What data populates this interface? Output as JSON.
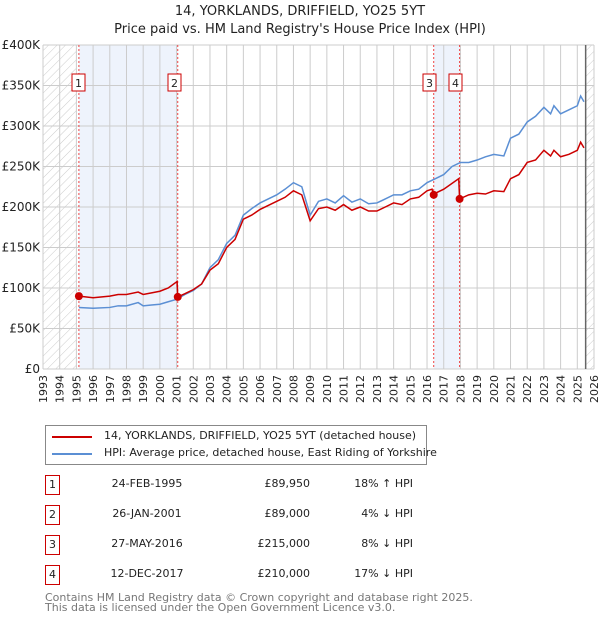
{
  "title": "14, YORKLANDS, DRIFFIELD, YO25 5YT",
  "subtitle": "Price paid vs. HM Land Registry's House Price Index (HPI)",
  "chart_data": {
    "type": "line",
    "title": "14, YORKLANDS, DRIFFIELD, YO25 5YT — Price paid vs. HM Land Registry's House Price Index (HPI)",
    "xlim": [
      1993,
      2026
    ],
    "ylim": [
      0,
      400000
    ],
    "yticks": [
      {
        "v": 0,
        "label": "£0"
      },
      {
        "v": 50000,
        "label": "£50K"
      },
      {
        "v": 100000,
        "label": "£100K"
      },
      {
        "v": 150000,
        "label": "£150K"
      },
      {
        "v": 200000,
        "label": "£200K"
      },
      {
        "v": 250000,
        "label": "£250K"
      },
      {
        "v": 300000,
        "label": "£300K"
      },
      {
        "v": 350000,
        "label": "£350K"
      },
      {
        "v": 400000,
        "label": "£400K"
      }
    ],
    "xticks": [
      "1993",
      "1994",
      "1995",
      "1996",
      "1997",
      "1998",
      "1999",
      "2000",
      "2001",
      "2002",
      "2003",
      "2004",
      "2005",
      "2006",
      "2007",
      "2008",
      "2009",
      "2010",
      "2011",
      "2012",
      "2013",
      "2014",
      "2015",
      "2016",
      "2017",
      "2018",
      "2019",
      "2020",
      "2021",
      "2022",
      "2023",
      "2024",
      "2025",
      "2026"
    ],
    "grid": true,
    "hatched_before": 1995.0,
    "hatched_after": 2025.5,
    "shaded_ranges": [
      [
        1995.15,
        2001.07
      ],
      [
        2016.4,
        2017.95
      ]
    ],
    "series": [
      {
        "name": "14, YORKLANDS, DRIFFIELD, YO25 5YT (detached house)",
        "color": "#cc0000",
        "points": [
          [
            1995.15,
            90
          ],
          [
            1996,
            88
          ],
          [
            1997,
            90
          ],
          [
            1997.5,
            92
          ],
          [
            1998,
            92
          ],
          [
            1998.7,
            95
          ],
          [
            1999,
            92
          ],
          [
            1999.5,
            94
          ],
          [
            2000,
            96
          ],
          [
            2000.5,
            100
          ],
          [
            2001.03,
            108
          ],
          [
            2001.07,
            89
          ],
          [
            2001.5,
            93
          ],
          [
            2002,
            98
          ],
          [
            2002.5,
            105
          ],
          [
            2003,
            122
          ],
          [
            2003.5,
            130
          ],
          [
            2004,
            150
          ],
          [
            2004.5,
            160
          ],
          [
            2005,
            185
          ],
          [
            2005.5,
            190
          ],
          [
            2006,
            197
          ],
          [
            2007,
            207
          ],
          [
            2007.5,
            212
          ],
          [
            2008,
            220
          ],
          [
            2008.5,
            215
          ],
          [
            2009,
            183
          ],
          [
            2009.5,
            198
          ],
          [
            2010,
            200
          ],
          [
            2010.5,
            196
          ],
          [
            2011,
            203
          ],
          [
            2011.5,
            196
          ],
          [
            2012,
            200
          ],
          [
            2012.5,
            195
          ],
          [
            2013,
            195
          ],
          [
            2013.5,
            200
          ],
          [
            2014,
            205
          ],
          [
            2014.5,
            203
          ],
          [
            2015,
            210
          ],
          [
            2015.5,
            212
          ],
          [
            2016,
            220
          ],
          [
            2016.3,
            222
          ],
          [
            2016.4,
            215
          ],
          [
            2016.6,
            218
          ],
          [
            2017,
            222
          ],
          [
            2017.9,
            235
          ],
          [
            2017.95,
            210
          ],
          [
            2018.5,
            215
          ],
          [
            2019,
            217
          ],
          [
            2019.5,
            216
          ],
          [
            2020,
            220
          ],
          [
            2020.6,
            219
          ],
          [
            2021,
            235
          ],
          [
            2021.5,
            240
          ],
          [
            2022,
            255
          ],
          [
            2022.5,
            258
          ],
          [
            2023,
            270
          ],
          [
            2023.4,
            263
          ],
          [
            2023.6,
            270
          ],
          [
            2024,
            262
          ],
          [
            2024.5,
            265
          ],
          [
            2025,
            270
          ],
          [
            2025.2,
            280
          ],
          [
            2025.4,
            273
          ]
        ]
      },
      {
        "name": "HPI: Average price, detached house, East Riding of Yorkshire",
        "color": "#5b8fd4",
        "points": [
          [
            1995.15,
            76
          ],
          [
            1996,
            75
          ],
          [
            1997,
            76
          ],
          [
            1997.5,
            78
          ],
          [
            1998,
            78
          ],
          [
            1998.7,
            82
          ],
          [
            1999,
            78
          ],
          [
            1999.5,
            79
          ],
          [
            2000,
            80
          ],
          [
            2000.5,
            83
          ],
          [
            2001,
            86
          ],
          [
            2001.5,
            92
          ],
          [
            2002,
            97
          ],
          [
            2002.5,
            105
          ],
          [
            2003,
            125
          ],
          [
            2003.5,
            135
          ],
          [
            2004,
            155
          ],
          [
            2004.5,
            165
          ],
          [
            2005,
            190
          ],
          [
            2005.5,
            198
          ],
          [
            2006,
            205
          ],
          [
            2007,
            215
          ],
          [
            2007.5,
            222
          ],
          [
            2008,
            230
          ],
          [
            2008.5,
            225
          ],
          [
            2009,
            190
          ],
          [
            2009.5,
            207
          ],
          [
            2010,
            210
          ],
          [
            2010.5,
            205
          ],
          [
            2011,
            214
          ],
          [
            2011.5,
            206
          ],
          [
            2012,
            210
          ],
          [
            2012.5,
            204
          ],
          [
            2013,
            205
          ],
          [
            2013.5,
            210
          ],
          [
            2014,
            215
          ],
          [
            2014.5,
            215
          ],
          [
            2015,
            220
          ],
          [
            2015.5,
            222
          ],
          [
            2016,
            230
          ],
          [
            2016.5,
            235
          ],
          [
            2017,
            240
          ],
          [
            2017.5,
            250
          ],
          [
            2018,
            255
          ],
          [
            2018.5,
            255
          ],
          [
            2019,
            258
          ],
          [
            2019.5,
            262
          ],
          [
            2020,
            265
          ],
          [
            2020.6,
            263
          ],
          [
            2021,
            285
          ],
          [
            2021.5,
            290
          ],
          [
            2022,
            305
          ],
          [
            2022.5,
            312
          ],
          [
            2023,
            323
          ],
          [
            2023.4,
            315
          ],
          [
            2023.6,
            325
          ],
          [
            2024,
            315
          ],
          [
            2024.5,
            320
          ],
          [
            2025,
            325
          ],
          [
            2025.2,
            337
          ],
          [
            2025.4,
            330
          ]
        ]
      }
    ],
    "y_units": "thousands GBP",
    "sales": [
      {
        "id": "1",
        "date": "24-FEB-1995",
        "x": 1995.15,
        "price": 89950,
        "price_label": "£89,950",
        "hpi": "18% ↑ HPI"
      },
      {
        "id": "2",
        "date": "26-JAN-2001",
        "x": 2001.07,
        "price": 89000,
        "price_label": "£89,000",
        "hpi": "4% ↓ HPI"
      },
      {
        "id": "3",
        "date": "27-MAY-2016",
        "x": 2016.4,
        "price": 215000,
        "price_label": "£215,000",
        "hpi": "8% ↓ HPI"
      },
      {
        "id": "4",
        "date": "12-DEC-2017",
        "x": 2017.95,
        "price": 210000,
        "price_label": "£210,000",
        "hpi": "17% ↓ HPI"
      }
    ]
  },
  "footer": [
    "Contains HM Land Registry data © Crown copyright and database right 2025.",
    "This data is licensed under the Open Government Licence v3.0."
  ]
}
